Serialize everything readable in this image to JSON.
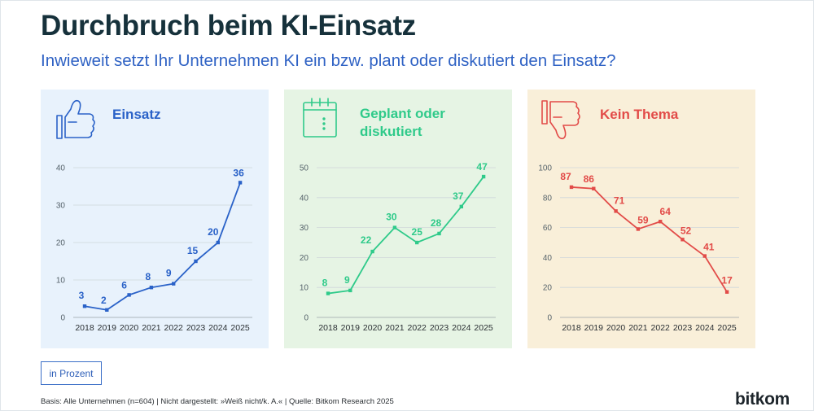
{
  "header": {
    "title": "Durchbruch beim KI-Einsatz",
    "subtitle": "Inwieweit setzt Ihr Unternehmen KI ein bzw. plant oder diskutiert den Einsatz?"
  },
  "legend_label": "in Prozent",
  "footer": "Basis: Alle Unternehmen (n=604) | Nicht dargestellt: »Weiß nicht/k. A.« | Quelle: Bitkom Research 2025",
  "logo": "bitkom",
  "chart_data": [
    {
      "type": "line",
      "title": "Einsatz",
      "icon": "thumbs-up-icon",
      "color": "#2a62c8",
      "bg": "#e8f2fc",
      "x": [
        "2018",
        "2019",
        "2020",
        "2021",
        "2022",
        "2023",
        "2024",
        "2025"
      ],
      "values": [
        3,
        2,
        6,
        8,
        9,
        15,
        20,
        36
      ],
      "ylim": [
        0,
        40
      ],
      "yticks": [
        "0",
        "10",
        "20",
        "30",
        "40"
      ],
      "grid": true
    },
    {
      "type": "line",
      "title": "Geplant oder diskutiert",
      "title_lines": [
        "Geplant oder",
        "diskutiert"
      ],
      "icon": "calendar-icon",
      "color": "#2fca8a",
      "bg": "#e6f4e4",
      "x": [
        "2018",
        "2019",
        "2020",
        "2021",
        "2022",
        "2023",
        "2024",
        "2025"
      ],
      "values": [
        8,
        9,
        22,
        30,
        25,
        28,
        37,
        47
      ],
      "ylim": [
        0,
        50
      ],
      "yticks": [
        "0",
        "10",
        "20",
        "30",
        "40",
        "50"
      ],
      "grid": true
    },
    {
      "type": "line",
      "title": "Kein Thema",
      "icon": "thumbs-down-icon",
      "color": "#e24b48",
      "bg": "#f9efd9",
      "x": [
        "2018",
        "2019",
        "2020",
        "2021",
        "2022",
        "2023",
        "2024",
        "2025"
      ],
      "values": [
        87,
        86,
        71,
        59,
        64,
        52,
        41,
        17
      ],
      "ylim": [
        0,
        100
      ],
      "yticks": [
        "0",
        "20",
        "40",
        "60",
        "80",
        "100"
      ],
      "grid": true
    }
  ]
}
